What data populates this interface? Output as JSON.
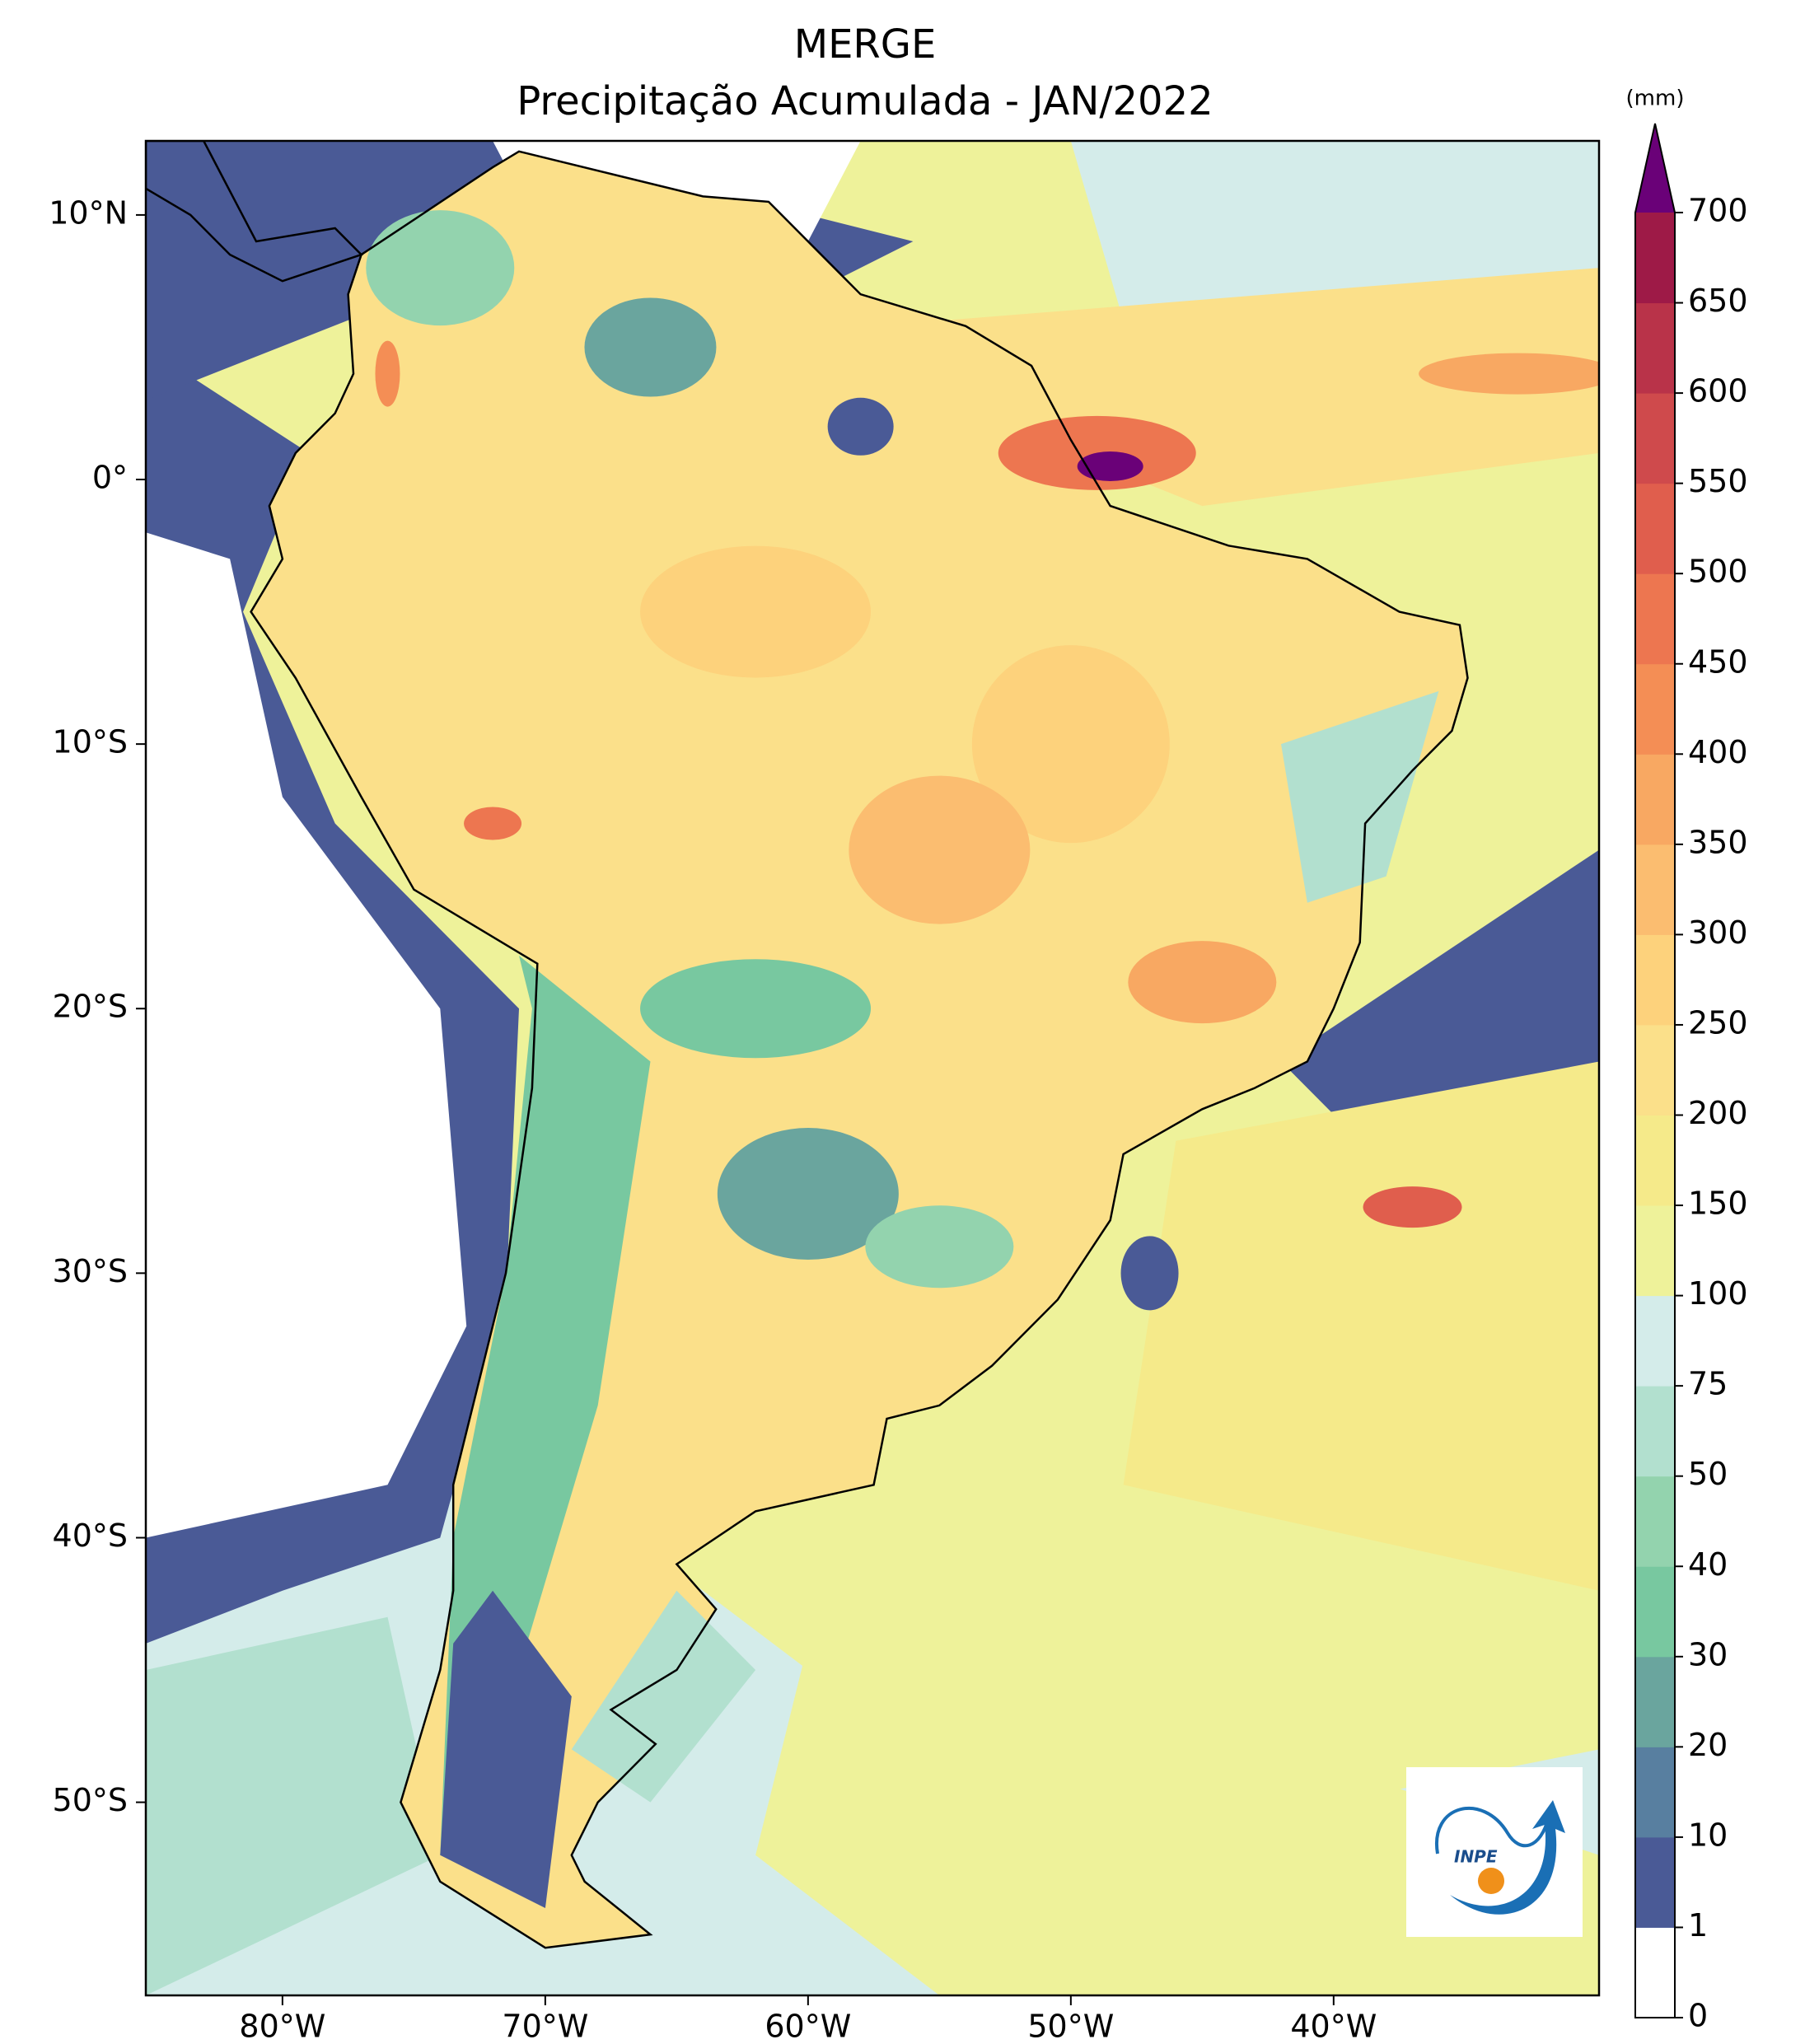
{
  "title": "MERGE",
  "subtitle": "Precipitação Acumulada - JAN/2022",
  "map": {
    "lonlim": [
      -85.2,
      -29.9
    ],
    "latlim": [
      -57.3,
      12.8
    ],
    "lon_ticks": [
      {
        "value": -80,
        "label": "80°W"
      },
      {
        "value": -70,
        "label": "70°W"
      },
      {
        "value": -60,
        "label": "60°W"
      },
      {
        "value": -50,
        "label": "50°W"
      },
      {
        "value": -40,
        "label": "40°W"
      }
    ],
    "lat_ticks": [
      {
        "value": 10,
        "label": "10°N"
      },
      {
        "value": 0,
        "label": "0°"
      },
      {
        "value": -10,
        "label": "10°S"
      },
      {
        "value": -20,
        "label": "20°S"
      },
      {
        "value": -30,
        "label": "30°S"
      },
      {
        "value": -40,
        "label": "40°S"
      },
      {
        "value": -50,
        "label": "50°S"
      }
    ]
  },
  "colorbar": {
    "unit": "(mm)",
    "levels": [
      0,
      1,
      10,
      20,
      30,
      40,
      50,
      75,
      100,
      150,
      200,
      250,
      300,
      350,
      400,
      450,
      500,
      550,
      600,
      650,
      700
    ],
    "colors": [
      "#ffffff",
      "#4a5a96",
      "#587fa0",
      "#6aa59e",
      "#78c8a0",
      "#93d3ae",
      "#b2e0cf",
      "#d4ecea",
      "#eef29a",
      "#f5ea8a",
      "#fbe08a",
      "#fdd27c",
      "#fbbd70",
      "#f8a862",
      "#f48e55",
      "#ed7650",
      "#e05e4d",
      "#cf4a4c",
      "#b93349",
      "#9e1a47"
    ],
    "extend_color": "#6a0178"
  },
  "logo": {
    "text": "INPE"
  }
}
